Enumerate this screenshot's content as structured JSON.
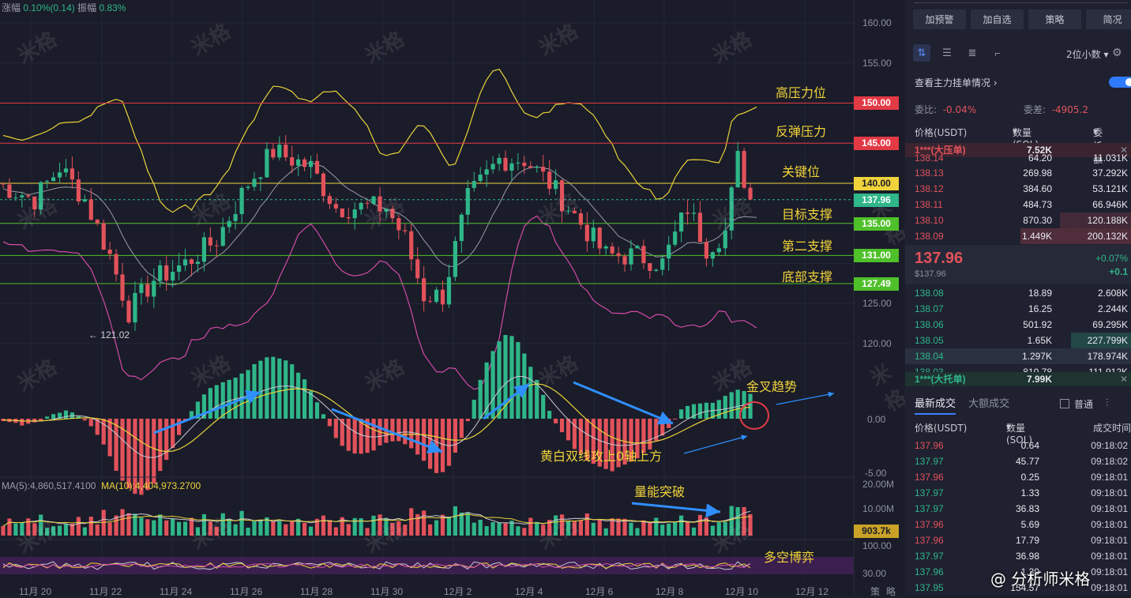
{
  "top_stats": {
    "change_label": "涨幅",
    "change_value": "0.10%(0.14)",
    "amplitude_label": "振幅",
    "amplitude_value": "0.83%"
  },
  "watermark_text": "米格",
  "annotations": {
    "high_resistance": "高压力位",
    "rebound_resistance": "反弹压力",
    "key_level": "关键位",
    "target_support": "目标支撑",
    "second_support": "第二支撑",
    "bottom_support": "底部支撑",
    "golden_cross": "金叉趋势",
    "lines_above_zero": "黄白双线攻上0轴上方",
    "volume_breakout": "量能突破",
    "bull_bear": "多空博弈"
  },
  "low_marker": "← 121.02",
  "price_levels": [
    {
      "value": "150.00",
      "price": 150,
      "color": "#e23a45"
    },
    {
      "value": "145.00",
      "price": 145,
      "color": "#e23a45"
    },
    {
      "value": "140.00",
      "price": 140,
      "color": "#f0d33a"
    },
    {
      "value": "137.96",
      "price": 137.96,
      "color": "#2fb689"
    },
    {
      "value": "135.00",
      "price": 135,
      "color": "#4fc02a"
    },
    {
      "value": "131.00",
      "price": 131,
      "color": "#4fc02a"
    },
    {
      "value": "127.49",
      "price": 127.49,
      "color": "#4fc02a"
    }
  ],
  "y_axis": {
    "price_ticks": [
      "160.00",
      "155.00",
      "125.00",
      "120.00"
    ],
    "macd_ticks": [
      "0.00",
      "-5.00"
    ],
    "volume_ticks": [
      "20.00M",
      "10.00M"
    ],
    "volume_current": "903.7k",
    "osc_ticks": [
      "100.00",
      "30.00"
    ]
  },
  "x_axis": [
    "11月 20",
    "11月 22",
    "11月 24",
    "11月 26",
    "11月 28",
    "11月 30",
    "12月 2",
    "12月 4",
    "12月 6",
    "12月 8",
    "12月 10",
    "12月 12"
  ],
  "x_axis_extra": [
    "策",
    "略"
  ],
  "volume_legend": {
    "ma5": "MA(5):4,860,517.4100",
    "ma10": "MA(10):4,404,973.2700"
  },
  "side": {
    "buttons": [
      "加预警",
      "加自选",
      "策略",
      "简况"
    ],
    "decimal": "2位小数",
    "main_order": "查看主力挂单情况",
    "ratio_label": "委比:",
    "ratio_value": "-0.04%",
    "diff_label": "委差:",
    "diff_value": "-4905.2",
    "book_headers": {
      "price": "价格(USDT)",
      "qty": "数量 (SOL)",
      "amount": "委托额"
    },
    "big_sell": {
      "label": "1***(大压单)",
      "qty": "7.52K"
    },
    "asks": [
      {
        "price": "138.14",
        "qty": "64.20",
        "amount": "11.031K"
      },
      {
        "price": "138.13",
        "qty": "269.98",
        "amount": "37.292K"
      },
      {
        "price": "138.12",
        "qty": "384.60",
        "amount": "53.121K"
      },
      {
        "price": "138.11",
        "qty": "484.73",
        "amount": "66.946K"
      },
      {
        "price": "138.10",
        "qty": "870.30",
        "amount": "120.188K"
      },
      {
        "price": "138.09",
        "qty": "1.449K",
        "amount": "200.132K"
      }
    ],
    "last_price": "137.96",
    "last_price_usd": "$137.96",
    "last_change_pct": "+0.07%",
    "last_change_abs": "+0.1",
    "bids": [
      {
        "price": "138.08",
        "qty": "18.89",
        "amount": "2.608K"
      },
      {
        "price": "138.07",
        "qty": "16.25",
        "amount": "2.244K"
      },
      {
        "price": "138.06",
        "qty": "501.92",
        "amount": "69.295K"
      },
      {
        "price": "138.05",
        "qty": "1.65K",
        "amount": "227.799K"
      },
      {
        "price": "138.04",
        "qty": "1.297K",
        "amount": "178.974K"
      },
      {
        "price": "138.03",
        "qty": "810.78",
        "amount": "111.912K"
      }
    ],
    "big_buy": {
      "label": "1***(大托单)",
      "qty": "7.99K"
    },
    "trade_tabs": [
      "最新成交",
      "大额成交"
    ],
    "normal": "普通",
    "trade_headers": {
      "price": "价格(USDT)",
      "qty": "数量(SOL)",
      "time": "成交时间"
    },
    "trades": [
      {
        "price": "137.96",
        "qty": "0.64",
        "time": "09:18:02",
        "side": "sell"
      },
      {
        "price": "137.97",
        "qty": "45.77",
        "time": "09:18:02",
        "side": "buy"
      },
      {
        "price": "137.96",
        "qty": "0.25",
        "time": "09:18:01",
        "side": "sell"
      },
      {
        "price": "137.97",
        "qty": "1.33",
        "time": "09:18:01",
        "side": "buy"
      },
      {
        "price": "137.97",
        "qty": "36.83",
        "time": "09:18:01",
        "side": "buy"
      },
      {
        "price": "137.96",
        "qty": "5.69",
        "time": "09:18:01",
        "side": "sell"
      },
      {
        "price": "137.96",
        "qty": "17.79",
        "time": "09:18:01",
        "side": "sell"
      },
      {
        "price": "137.97",
        "qty": "36.98",
        "time": "09:18:01",
        "side": "buy"
      },
      {
        "price": "137.96",
        "qty": "1.39",
        "time": "09:18:01",
        "side": "buy"
      },
      {
        "price": "137.95",
        "qty": "154.57",
        "time": "09:18:01",
        "side": "buy"
      }
    ]
  },
  "signature": "@ 分析师米格",
  "chart_data": {
    "type": "candlestick",
    "title": "",
    "ylim": [
      117,
      162
    ],
    "x_range": [
      "11月 20",
      "12月 12"
    ],
    "horizontal_levels": [
      150,
      145,
      140,
      135,
      131,
      127.49
    ],
    "price_path": [
      {
        "x": 0,
        "p": 140
      },
      {
        "x": 6,
        "p": 138
      },
      {
        "x": 10,
        "p": 142
      },
      {
        "x": 14,
        "p": 138
      },
      {
        "x": 18,
        "p": 131
      },
      {
        "x": 21,
        "p": 124
      },
      {
        "x": 25,
        "p": 128
      },
      {
        "x": 30,
        "p": 130
      },
      {
        "x": 35,
        "p": 133
      },
      {
        "x": 40,
        "p": 140
      },
      {
        "x": 44,
        "p": 144
      },
      {
        "x": 50,
        "p": 142
      },
      {
        "x": 54,
        "p": 137
      },
      {
        "x": 58,
        "p": 137
      },
      {
        "x": 62,
        "p": 137
      },
      {
        "x": 65,
        "p": 133
      },
      {
        "x": 68,
        "p": 126
      },
      {
        "x": 71,
        "p": 126
      },
      {
        "x": 75,
        "p": 138
      },
      {
        "x": 80,
        "p": 143
      },
      {
        "x": 84,
        "p": 143
      },
      {
        "x": 88,
        "p": 140
      },
      {
        "x": 92,
        "p": 136
      },
      {
        "x": 97,
        "p": 131
      },
      {
        "x": 102,
        "p": 131
      },
      {
        "x": 106,
        "p": 130
      },
      {
        "x": 110,
        "p": 137
      },
      {
        "x": 113,
        "p": 132
      },
      {
        "x": 116,
        "p": 134
      },
      {
        "x": 118,
        "p": 143
      },
      {
        "x": 120,
        "p": 138
      }
    ]
  }
}
